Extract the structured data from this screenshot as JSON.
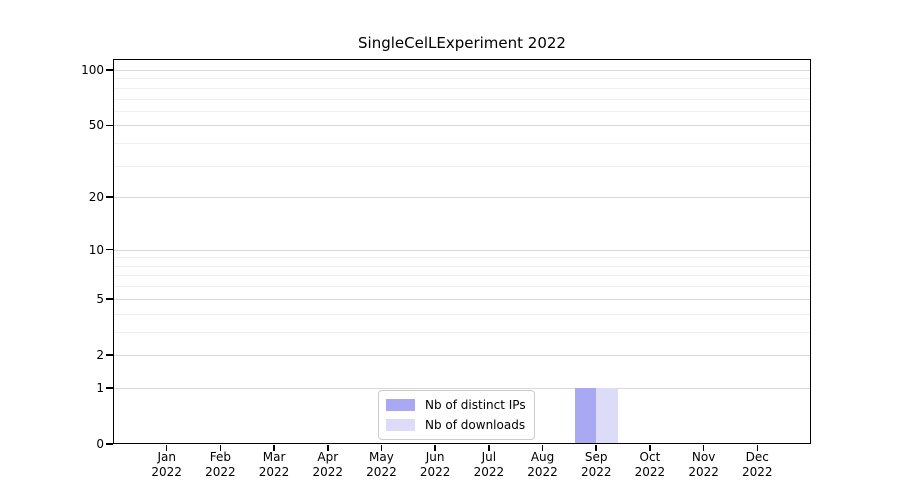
{
  "chart_data": {
    "type": "bar",
    "title": "SingleCelLExperiment 2022",
    "year_label": "2022",
    "categories": [
      "Jan",
      "Feb",
      "Mar",
      "Apr",
      "May",
      "Jun",
      "Jul",
      "Aug",
      "Sep",
      "Oct",
      "Nov",
      "Dec"
    ],
    "series": [
      {
        "name": "Nb of distinct IPs",
        "color": "#a9a9f3",
        "values": [
          0,
          0,
          0,
          0,
          0,
          0,
          0,
          0,
          1,
          0,
          0,
          0
        ]
      },
      {
        "name": "Nb of downloads",
        "color": "#dcdcf8",
        "values": [
          0,
          0,
          0,
          0,
          0,
          0,
          0,
          0,
          1,
          0,
          0,
          0
        ]
      }
    ],
    "yscale": "log1p",
    "ylim": [
      0,
      115
    ],
    "y_major_ticks": [
      0,
      1,
      2,
      5,
      10,
      20,
      50,
      100
    ],
    "y_minor_gridlines": [
      3,
      4,
      6,
      7,
      8,
      9,
      30,
      40,
      60,
      70,
      80,
      90
    ],
    "grid": "horizontal",
    "legend_position": "lower-center-inside",
    "colors": {
      "major_grid": "#d9d9d9",
      "minor_grid": "#eeeeee",
      "axis": "#000000",
      "text": "#000000",
      "legend_border": "#cccccc",
      "legend_bg": "#ffffff",
      "background": "#ffffff"
    }
  }
}
